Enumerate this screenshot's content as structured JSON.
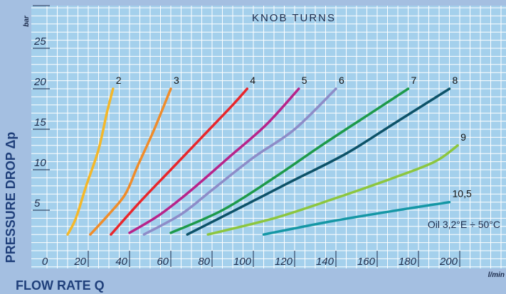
{
  "chart_data": {
    "type": "line",
    "title": "KNOB TURNS",
    "xlabel": "FLOW RATE Q",
    "ylabel": "PRESSURE DROP Δp",
    "x_unit": "l/min",
    "y_unit": "bar",
    "xlim": [
      0,
      210
    ],
    "ylim": [
      0,
      30
    ],
    "x_ticks": [
      0,
      20,
      40,
      60,
      80,
      100,
      120,
      140,
      160,
      180,
      200
    ],
    "y_ticks": [
      5,
      10,
      15,
      20,
      25
    ],
    "grid": true,
    "annotation": "Oil 3,2°E ÷ 50°C",
    "series": [
      {
        "name": "2",
        "color": "#f4b82a",
        "points": [
          [
            10,
            2
          ],
          [
            14,
            4
          ],
          [
            19,
            8
          ],
          [
            25,
            12.5
          ],
          [
            29,
            17
          ],
          [
            32,
            20
          ]
        ]
      },
      {
        "name": "3",
        "color": "#ef8c2b",
        "points": [
          [
            21,
            2
          ],
          [
            30,
            4.5
          ],
          [
            38,
            7
          ],
          [
            44,
            10.5
          ],
          [
            52,
            15
          ],
          [
            60,
            20
          ]
        ]
      },
      {
        "name": "4",
        "color": "#e8262b",
        "points": [
          [
            31,
            2
          ],
          [
            45,
            6
          ],
          [
            60,
            10
          ],
          [
            75,
            14
          ],
          [
            90,
            18
          ],
          [
            97,
            20
          ]
        ]
      },
      {
        "name": "5",
        "color": "#b7238a",
        "points": [
          [
            40,
            2.2
          ],
          [
            55,
            4.5
          ],
          [
            70,
            7.5
          ],
          [
            88,
            11.5
          ],
          [
            106,
            15.5
          ],
          [
            122,
            20
          ]
        ]
      },
      {
        "name": "6",
        "color": "#8d8cc8",
        "points": [
          [
            47,
            2
          ],
          [
            65,
            4.5
          ],
          [
            80,
            7.5
          ],
          [
            100,
            11.5
          ],
          [
            120,
            15
          ],
          [
            140,
            20
          ]
        ]
      },
      {
        "name": "7",
        "color": "#1d9a4a",
        "points": [
          [
            60,
            2.2
          ],
          [
            85,
            5
          ],
          [
            110,
            9
          ],
          [
            133,
            13
          ],
          [
            157,
            17
          ],
          [
            175,
            20
          ]
        ]
      },
      {
        "name": "8",
        "color": "#0d5268",
        "points": [
          [
            68,
            2
          ],
          [
            95,
            5.5
          ],
          [
            118,
            8.5
          ],
          [
            145,
            12
          ],
          [
            170,
            16
          ],
          [
            195,
            20
          ]
        ]
      },
      {
        "name": "9",
        "color": "#8cc63e",
        "points": [
          [
            78,
            2
          ],
          [
            110,
            4
          ],
          [
            140,
            6.5
          ],
          [
            168,
            9
          ],
          [
            188,
            11
          ],
          [
            199,
            13
          ]
        ]
      },
      {
        "name": "10,5",
        "color": "#1597a5",
        "points": [
          [
            105,
            2
          ],
          [
            135,
            3.5
          ],
          [
            165,
            4.8
          ],
          [
            195,
            6
          ]
        ]
      }
    ]
  }
}
